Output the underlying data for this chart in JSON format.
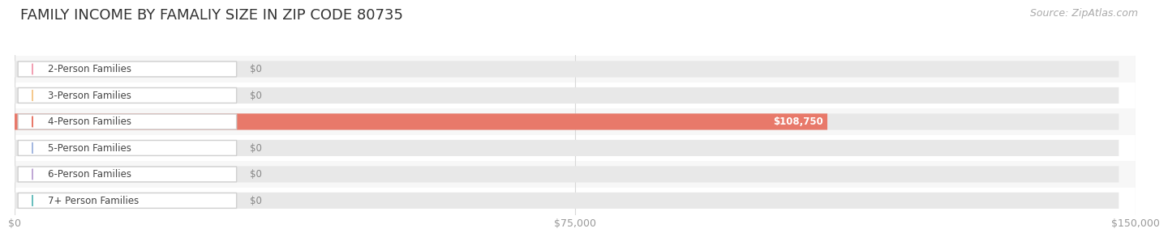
{
  "title": "FAMILY INCOME BY FAMALIY SIZE IN ZIP CODE 80735",
  "source": "Source: ZipAtlas.com",
  "categories": [
    "2-Person Families",
    "3-Person Families",
    "4-Person Families",
    "5-Person Families",
    "6-Person Families",
    "7+ Person Families"
  ],
  "values": [
    0,
    0,
    108750,
    0,
    0,
    0
  ],
  "bar_colors": [
    "#f2a0b3",
    "#f5c98e",
    "#e8796a",
    "#a4b8e0",
    "#c0a8d5",
    "#6abfbe"
  ],
  "row_bg_colors": [
    "#f7f7f7",
    "#ffffff",
    "#f7f7f7",
    "#ffffff",
    "#f7f7f7",
    "#ffffff"
  ],
  "xlim": [
    0,
    150000
  ],
  "xticks": [
    0,
    75000,
    150000
  ],
  "xtick_labels": [
    "$0",
    "$75,000",
    "$150,000"
  ],
  "value_label_4person": "$108,750",
  "zero_label": "$0",
  "background_color": "#ffffff",
  "title_fontsize": 13,
  "tick_fontsize": 9,
  "label_fontsize": 8.5,
  "source_fontsize": 9
}
